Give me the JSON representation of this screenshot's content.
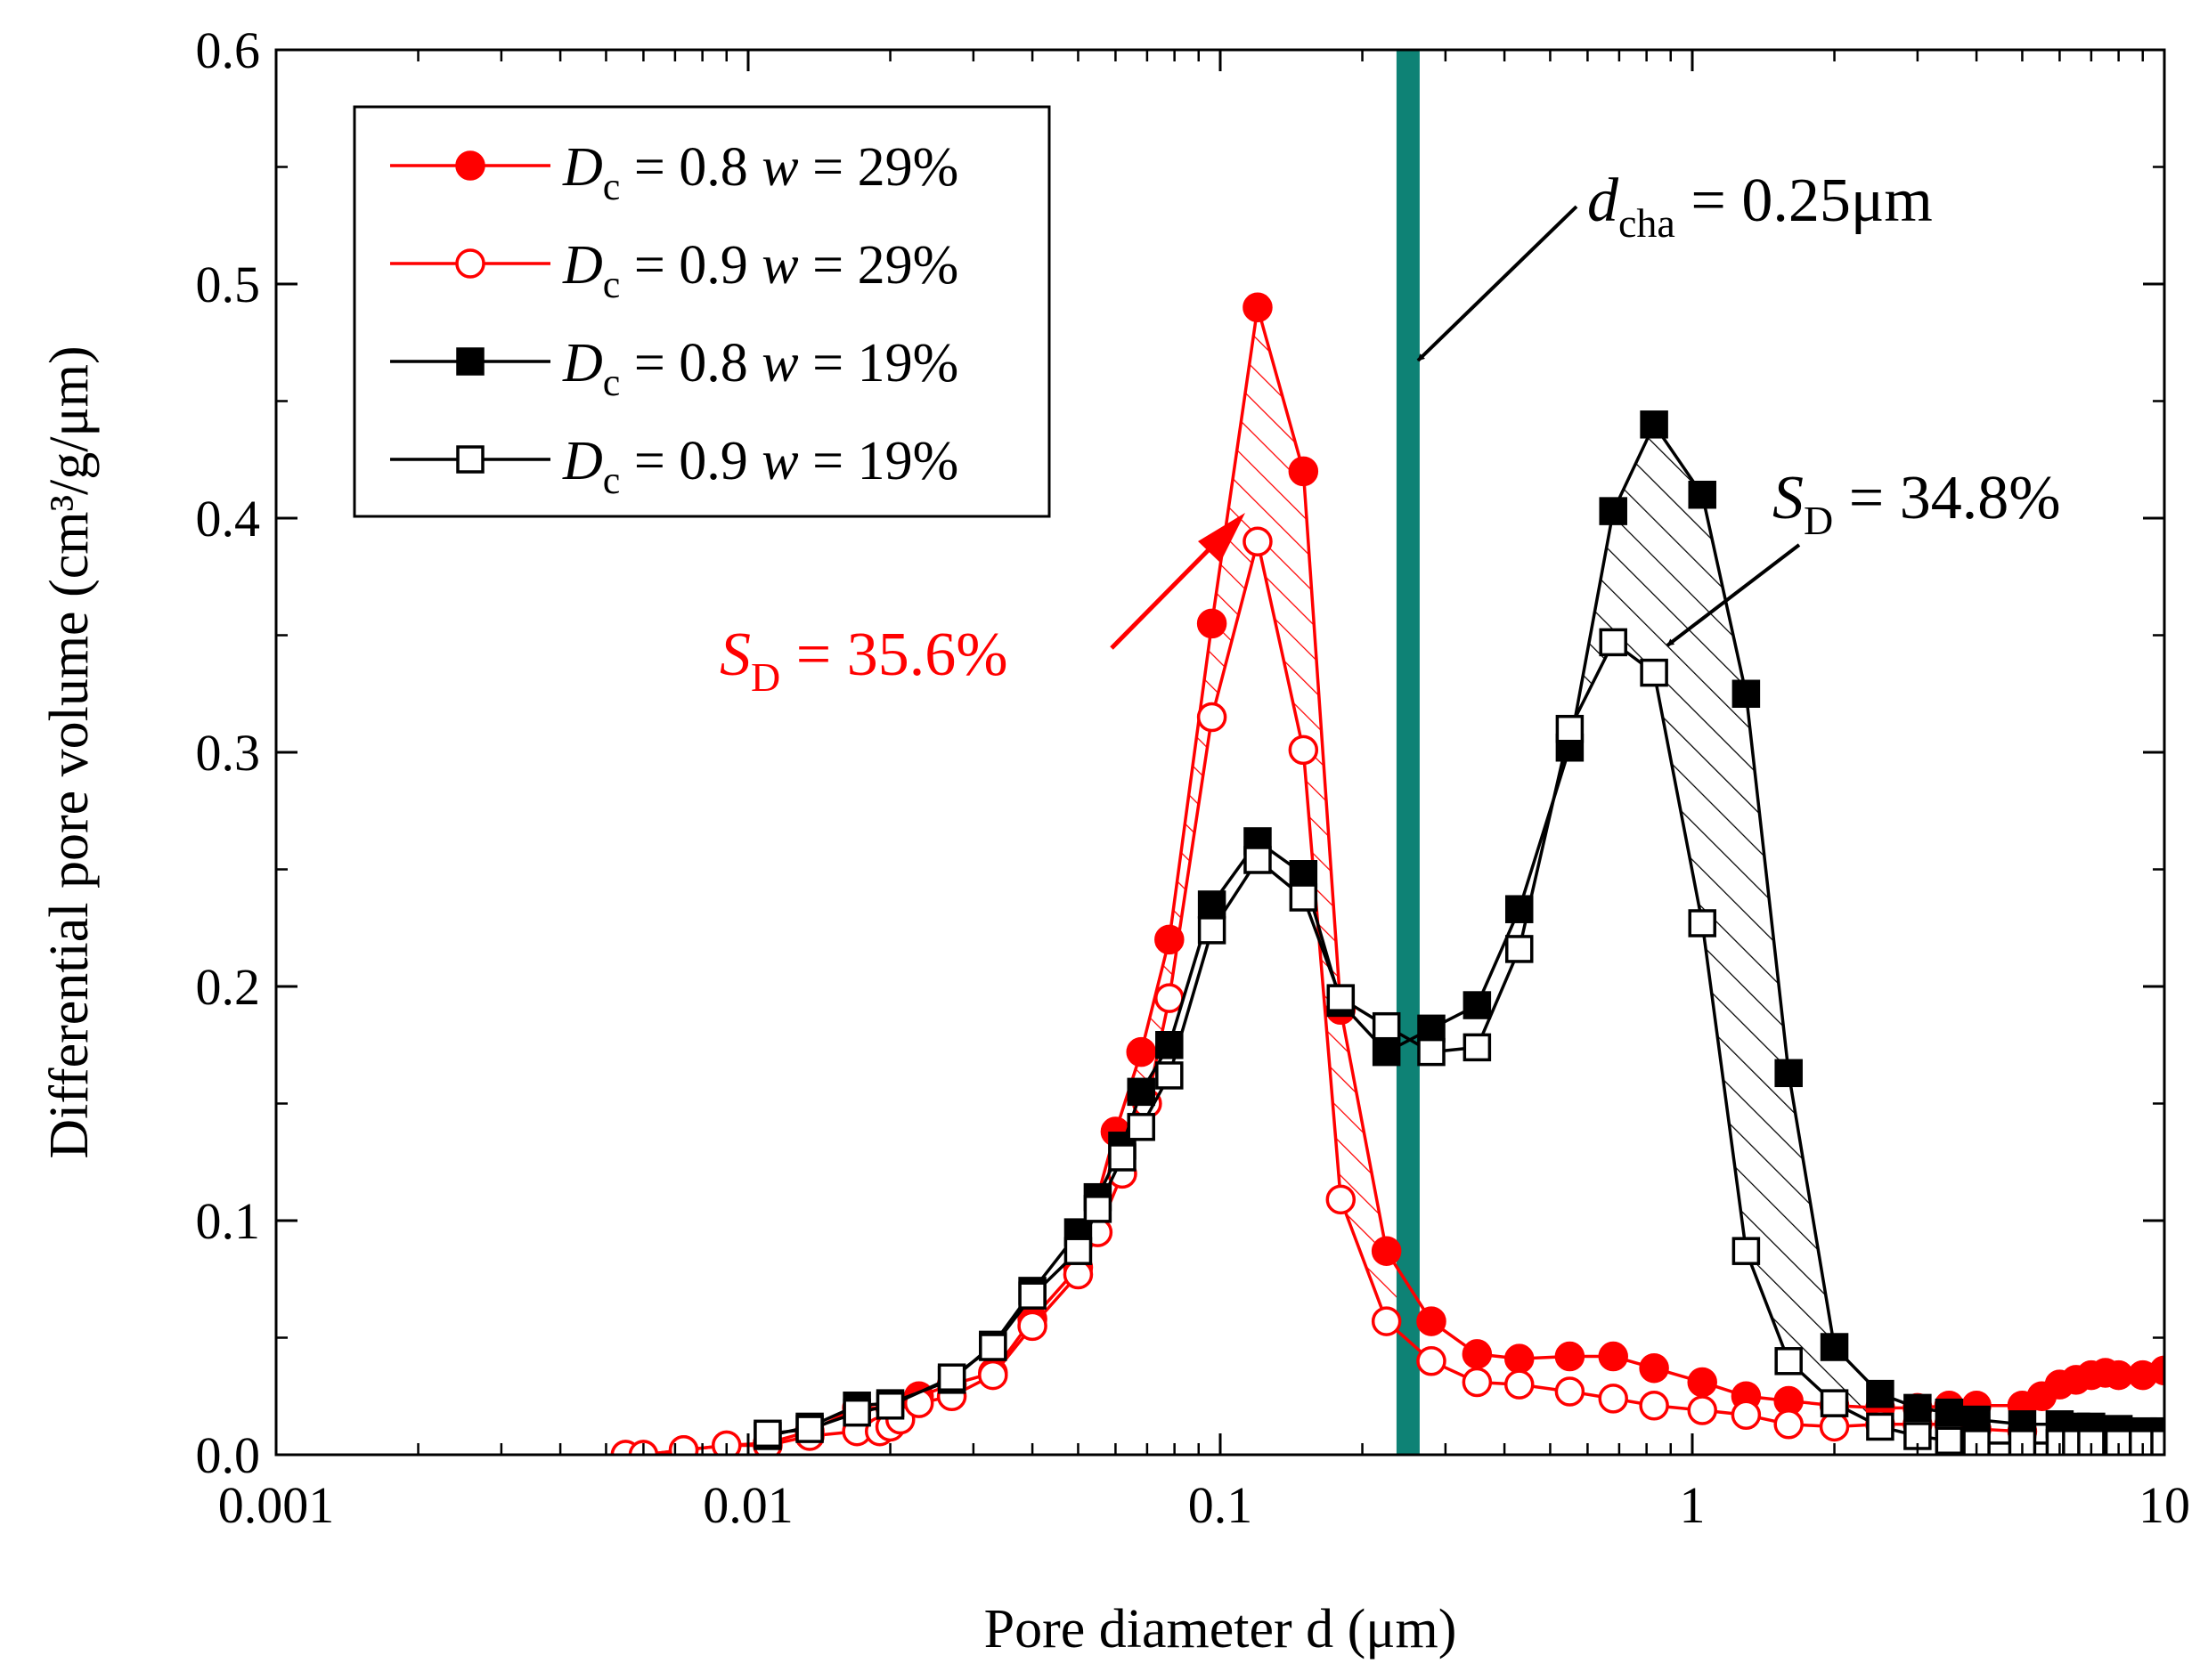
{
  "chart_data": {
    "type": "line",
    "xscale": "log",
    "xlim": [
      0.001,
      10
    ],
    "ylim": [
      0,
      0.6
    ],
    "xlabel": "Pore diameter d (μm)",
    "ylabel": "Differential pore volume (cm³/g/μm)",
    "xticks": [
      {
        "value": 0.001,
        "label": "0.001"
      },
      {
        "value": 0.01,
        "label": "0.01"
      },
      {
        "value": 0.1,
        "label": "0.1"
      },
      {
        "value": 1,
        "label": "1"
      },
      {
        "value": 10,
        "label": "10"
      }
    ],
    "yticks": [
      {
        "value": 0.0,
        "label": "0.0"
      },
      {
        "value": 0.1,
        "label": "0.1"
      },
      {
        "value": 0.2,
        "label": "0.2"
      },
      {
        "value": 0.3,
        "label": "0.3"
      },
      {
        "value": 0.4,
        "label": "0.4"
      },
      {
        "value": 0.5,
        "label": "0.5"
      },
      {
        "value": 0.6,
        "label": "0.6"
      }
    ],
    "series": [
      {
        "id": "dc08-w29",
        "var1": "D",
        "sub1": "c",
        "eq1": " = 0.8 ",
        "var2": "w",
        "eq2": " = 29%",
        "color": "#ff0000",
        "marker": "circle",
        "filled": true,
        "x": [
          0.0055,
          0.006,
          0.0073,
          0.009,
          0.011,
          0.0135,
          0.017,
          0.02,
          0.023,
          0.027,
          0.033,
          0.04,
          0.05,
          0.06,
          0.068,
          0.078,
          0.096,
          0.12,
          0.15,
          0.18,
          0.225,
          0.28,
          0.35,
          0.43,
          0.55,
          0.68,
          0.83,
          1.05,
          1.3,
          1.6,
          2.0,
          2.5,
          3.0,
          3.5,
          4.0,
          5.0,
          5.5,
          6.0,
          6.5,
          7.0,
          7.5,
          8.0,
          9.0,
          10.0
        ],
        "y": [
          0.0,
          0.0,
          0.002,
          0.004,
          0.005,
          0.01,
          0.02,
          0.02,
          0.025,
          0.03,
          0.035,
          0.058,
          0.08,
          0.138,
          0.172,
          0.22,
          0.355,
          0.49,
          0.42,
          0.19,
          0.087,
          0.057,
          0.043,
          0.041,
          0.042,
          0.042,
          0.037,
          0.031,
          0.025,
          0.023,
          0.021,
          0.02,
          0.02,
          0.021,
          0.021,
          0.021,
          0.025,
          0.03,
          0.032,
          0.034,
          0.035,
          0.034,
          0.034,
          0.036
        ]
      },
      {
        "id": "dc09-w29",
        "var1": "D",
        "sub1": "c",
        "eq1": " = 0.9 ",
        "var2": "w",
        "eq2": " = 29%",
        "color": "#ff0000",
        "marker": "circle",
        "filled": false,
        "x": [
          0.0055,
          0.006,
          0.0073,
          0.009,
          0.011,
          0.0135,
          0.017,
          0.019,
          0.02,
          0.021,
          0.023,
          0.027,
          0.033,
          0.04,
          0.05,
          0.055,
          0.062,
          0.07,
          0.078,
          0.096,
          0.12,
          0.15,
          0.18,
          0.225,
          0.28,
          0.35,
          0.43,
          0.55,
          0.68,
          0.83,
          1.05,
          1.3,
          1.6,
          2.0,
          2.5,
          3.0,
          3.5,
          4.0,
          5.0
        ],
        "y": [
          0.0,
          0.0,
          0.002,
          0.004,
          0.004,
          0.008,
          0.01,
          0.01,
          0.012,
          0.015,
          0.022,
          0.025,
          0.034,
          0.055,
          0.077,
          0.095,
          0.12,
          0.15,
          0.195,
          0.315,
          0.39,
          0.301,
          0.109,
          0.057,
          0.04,
          0.031,
          0.03,
          0.027,
          0.024,
          0.021,
          0.019,
          0.017,
          0.013,
          0.012,
          0.013,
          0.013,
          0.013,
          0.011,
          0.01
        ]
      },
      {
        "id": "dc08-w19",
        "var1": "D",
        "sub1": "c",
        "eq1": " = 0.8 ",
        "var2": "w",
        "eq2": " = 19%",
        "color": "#000000",
        "marker": "square",
        "filled": true,
        "x": [
          0.011,
          0.0135,
          0.017,
          0.02,
          0.027,
          0.033,
          0.04,
          0.05,
          0.055,
          0.062,
          0.068,
          0.078,
          0.096,
          0.12,
          0.15,
          0.18,
          0.225,
          0.28,
          0.35,
          0.43,
          0.55,
          0.68,
          0.83,
          1.05,
          1.3,
          1.6,
          2.0,
          2.5,
          3.0,
          3.5,
          4.0,
          5.0,
          6.0,
          6.5,
          7.0,
          8.0,
          9.0,
          10.0
        ],
        "y": [
          0.008,
          0.012,
          0.021,
          0.022,
          0.032,
          0.047,
          0.07,
          0.095,
          0.11,
          0.132,
          0.155,
          0.175,
          0.235,
          0.262,
          0.248,
          0.193,
          0.172,
          0.182,
          0.192,
          0.233,
          0.302,
          0.403,
          0.44,
          0.41,
          0.325,
          0.163,
          0.046,
          0.026,
          0.02,
          0.018,
          0.015,
          0.013,
          0.013,
          0.012,
          0.012,
          0.011,
          0.01,
          0.01
        ]
      },
      {
        "id": "dc09-w19",
        "var1": "D",
        "sub1": "c",
        "eq1": " = 0.9 ",
        "var2": "w",
        "eq2": " = 19%",
        "color": "#000000",
        "marker": "square",
        "filled": false,
        "x": [
          0.011,
          0.0135,
          0.017,
          0.02,
          0.027,
          0.033,
          0.04,
          0.05,
          0.055,
          0.062,
          0.068,
          0.078,
          0.096,
          0.12,
          0.15,
          0.18,
          0.225,
          0.28,
          0.35,
          0.43,
          0.55,
          0.68,
          0.83,
          1.05,
          1.3,
          1.6,
          2.0,
          2.5,
          3.0,
          3.5,
          4.0,
          5.0,
          6.0,
          6.5,
          7.0,
          8.0,
          9.0,
          10.0
        ],
        "y": [
          0.009,
          0.011,
          0.018,
          0.021,
          0.033,
          0.046,
          0.068,
          0.087,
          0.105,
          0.127,
          0.14,
          0.162,
          0.224,
          0.254,
          0.238,
          0.195,
          0.183,
          0.172,
          0.174,
          0.216,
          0.31,
          0.347,
          0.334,
          0.227,
          0.087,
          0.04,
          0.022,
          0.012,
          0.008,
          0.006,
          0.005,
          0.005,
          0.005,
          0.005,
          0.005,
          0.005,
          0.005,
          0.005
        ]
      }
    ],
    "vline": {
      "x": 0.25,
      "color": "#0e8275"
    },
    "annotations": {
      "dcha": {
        "var": "d",
        "sub": "cha",
        "rest": " = 0.25μm",
        "color": "#000000"
      },
      "sd_red": {
        "var": "S",
        "sub": "D",
        "rest": " = 35.6%",
        "color": "#ff0000"
      },
      "sd_black": {
        "var": "S",
        "sub": "D",
        "rest": " = 34.8%",
        "color": "#000000"
      }
    },
    "legend_position": "top-left"
  }
}
